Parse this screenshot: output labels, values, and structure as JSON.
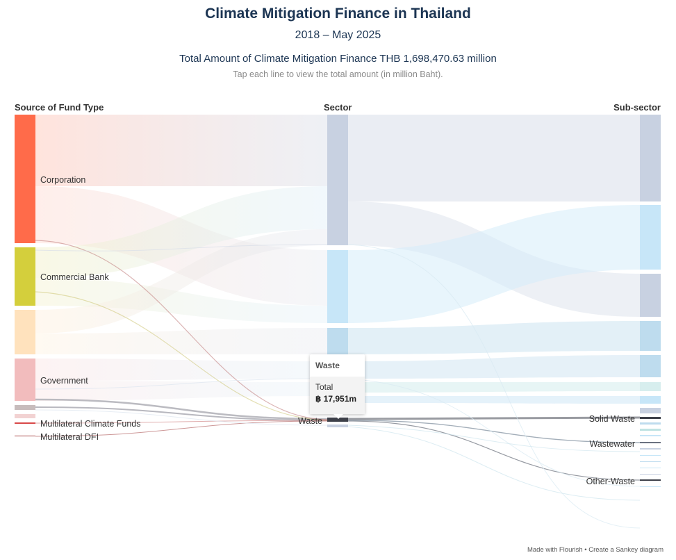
{
  "header": {
    "title": "Climate Mitigation Finance in Thailand",
    "subtitle": "2018 – May 2025",
    "total": "Total Amount of Climate Mitigation Finance THB 1,698,470.63 million",
    "hint": "Tap each line to view the total amount (in million Baht)."
  },
  "columns": {
    "source": "Source of Fund Type",
    "sector": "Sector",
    "subsector": "Sub-sector"
  },
  "tooltip": {
    "title": "Waste",
    "label": "Total",
    "value": "฿ 17,951m"
  },
  "footer": "Made with Flourish • Create a Sankey diagram",
  "colors": {
    "corporation": "#ff6b4a",
    "commercial_bank": "#d4cf3c",
    "unlabeled_source": "#ffe2bd",
    "government": "#f2bcbd",
    "climate_funds": "#d84848",
    "dfi": "#a94848",
    "sector_a": "#c8d1e1",
    "sector_b": "#c7e6f8",
    "sector_c": "#bedcee",
    "waste": "#3d4049",
    "solid_waste": "#3d4049",
    "wastewater": "#6b7280",
    "other_waste": "#3d4049"
  },
  "chart_data": {
    "type": "sankey",
    "unit": "million Baht",
    "title": "Climate Mitigation Finance in Thailand",
    "nodes": [
      {
        "id": "corporation",
        "column": 0,
        "label": "Corporation"
      },
      {
        "id": "commercial_bank",
        "column": 0,
        "label": "Commercial Bank"
      },
      {
        "id": "unlabeled_source",
        "column": 0,
        "label": ""
      },
      {
        "id": "government",
        "column": 0,
        "label": "Government"
      },
      {
        "id": "small_source",
        "column": 0,
        "label": ""
      },
      {
        "id": "climate_funds",
        "column": 0,
        "label": "Multilateral Climate Funds"
      },
      {
        "id": "dfi",
        "column": 0,
        "label": "Multilateral DFI"
      },
      {
        "id": "sector_a",
        "column": 1,
        "label": ""
      },
      {
        "id": "sector_b",
        "column": 1,
        "label": ""
      },
      {
        "id": "sector_c",
        "column": 1,
        "label": ""
      },
      {
        "id": "waste",
        "column": 1,
        "label": "Waste",
        "total": 17951
      },
      {
        "id": "solid_waste",
        "column": 2,
        "label": "Solid Waste"
      },
      {
        "id": "wastewater",
        "column": 2,
        "label": "Wastewater"
      },
      {
        "id": "other_waste",
        "column": 2,
        "label": "Other-Waste"
      }
    ],
    "highlighted_node": "waste"
  }
}
